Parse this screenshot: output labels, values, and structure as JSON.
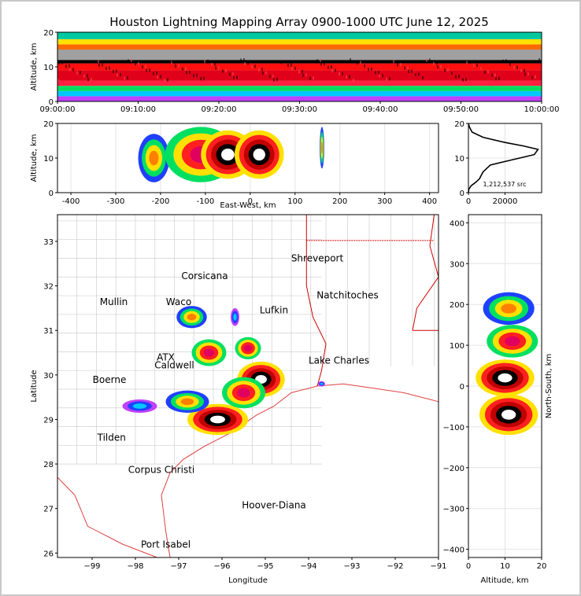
{
  "chart_data": [
    {
      "type": "heatmap",
      "panel": "time-altitude",
      "title": "Houston Lightning Mapping Array 0900-1000 UTC June 12, 2025",
      "ylabel": "Altitude, km",
      "xlabel": "",
      "x_ticks": [
        "09:00:00",
        "09:10:00",
        "09:20:00",
        "09:30:00",
        "09:40:00",
        "09:50:00",
        "10:00:00"
      ],
      "xlim": [
        "09:00:00",
        "10:00:00"
      ],
      "ylim": [
        0,
        20
      ],
      "y_ticks": [
        0,
        10,
        20
      ],
      "bands": [
        {
          "alt": [
            0,
            1.5
          ],
          "color": "#c040ff"
        },
        {
          "alt": [
            1.5,
            3
          ],
          "color": "#00c8ff"
        },
        {
          "alt": [
            3,
            4.5
          ],
          "color": "#00e060"
        },
        {
          "alt": [
            4.5,
            6
          ],
          "color": "#ff2040"
        },
        {
          "alt": [
            6,
            9
          ],
          "color": "#e0001a"
        },
        {
          "alt": [
            9,
            11
          ],
          "color": "#ff1010"
        },
        {
          "alt": [
            11,
            12
          ],
          "color": "#000000"
        },
        {
          "alt": [
            12,
            15
          ],
          "color": "#a0a0a0"
        },
        {
          "alt": [
            15,
            16.5
          ],
          "color": "#ff6a00"
        },
        {
          "alt": [
            16.5,
            18
          ],
          "color": "#ffe000"
        },
        {
          "alt": [
            18,
            20
          ],
          "color": "#00c8a0"
        }
      ]
    },
    {
      "type": "heatmap",
      "panel": "east-west-altitude",
      "xlabel": "East-West, km",
      "ylabel": "Altitude, km",
      "xlim": [
        -430,
        420
      ],
      "ylim": [
        0,
        20
      ],
      "x_ticks": [
        -400,
        -300,
        -200,
        -100,
        0,
        100,
        200,
        300,
        400
      ],
      "y_ticks": [
        0,
        10,
        20
      ],
      "cells": [
        {
          "x": -215,
          "z": 10,
          "rx": 35,
          "rz": 7,
          "level": 1
        },
        {
          "x": -110,
          "z": 11,
          "rx": 80,
          "rz": 8,
          "level": 2
        },
        {
          "x": -50,
          "z": 11,
          "rx": 60,
          "rz": 7,
          "level": 3
        },
        {
          "x": 20,
          "z": 11,
          "rx": 55,
          "rz": 7,
          "level": 3
        },
        {
          "x": 160,
          "z": 13,
          "rx": 5,
          "rz": 6,
          "level": 1
        }
      ]
    },
    {
      "type": "line",
      "panel": "altitude-histogram",
      "xlim": [
        0,
        40000
      ],
      "ylim": [
        0,
        20
      ],
      "x_ticks": [
        0,
        20000
      ],
      "y_ticks": [
        0,
        10,
        20
      ],
      "annotation": "1,212,537 src",
      "x": [
        0,
        200,
        1500,
        4000,
        6000,
        8000,
        12000,
        20000,
        28000,
        36000,
        38000,
        30000,
        20000,
        8000,
        2000,
        500,
        0
      ],
      "y": [
        0,
        1,
        2,
        3,
        4,
        6,
        8,
        9,
        10,
        11,
        12.5,
        13.5,
        14.5,
        16,
        17.5,
        19,
        20
      ]
    },
    {
      "type": "heatmap",
      "panel": "plan-view",
      "xlabel": "Longitude",
      "ylabel": "Latitude",
      "xlim": [
        -99.8,
        -91
      ],
      "ylim": [
        25.9,
        33.6
      ],
      "x_ticks": [
        -99,
        -98,
        -97,
        -96,
        -95,
        -94,
        -93,
        -92,
        -91
      ],
      "y_ticks": [
        26,
        27,
        28,
        29,
        30,
        31,
        32,
        33
      ],
      "cells": [
        {
          "lon": -96.1,
          "lat": 29.0,
          "rlon": 0.7,
          "rlat": 0.35,
          "level": 3
        },
        {
          "lon": -95.1,
          "lat": 29.9,
          "rlon": 0.55,
          "rlat": 0.4,
          "level": 3
        },
        {
          "lon": -95.5,
          "lat": 29.6,
          "rlon": 0.5,
          "rlat": 0.35,
          "level": 2
        },
        {
          "lon": -96.8,
          "lat": 29.4,
          "rlon": 0.5,
          "rlat": 0.25,
          "level": 1
        },
        {
          "lon": -96.3,
          "lat": 30.5,
          "rlon": 0.4,
          "rlat": 0.3,
          "level": 2
        },
        {
          "lon": -95.4,
          "lat": 30.6,
          "rlon": 0.3,
          "rlat": 0.25,
          "level": 2
        },
        {
          "lon": -96.7,
          "lat": 31.3,
          "rlon": 0.35,
          "rlat": 0.25,
          "level": 1
        },
        {
          "lon": -97.9,
          "lat": 29.3,
          "rlon": 0.4,
          "rlat": 0.15,
          "level": 0
        },
        {
          "lon": -95.7,
          "lat": 31.3,
          "rlon": 0.1,
          "rlat": 0.2,
          "level": 0
        },
        {
          "lon": -93.7,
          "lat": 29.8,
          "rlon": 0.08,
          "rlat": 0.06,
          "level": 0
        }
      ],
      "labels": [
        {
          "text": "Shreveport",
          "lon": -93.8,
          "lat": 32.55,
          "color": "#000000"
        },
        {
          "text": "Corsicana",
          "lon": -96.4,
          "lat": 32.15,
          "color": "#000000"
        },
        {
          "text": "Natchitoches",
          "lon": -93.1,
          "lat": 31.72,
          "color": "#000000"
        },
        {
          "text": "Mullin",
          "lon": -98.5,
          "lat": 31.57,
          "color": "#ff8c50"
        },
        {
          "text": "Waco",
          "lon": -97.0,
          "lat": 31.57,
          "color": "#000000"
        },
        {
          "text": "Lufkin",
          "lon": -94.8,
          "lat": 31.38,
          "color": "#000000"
        },
        {
          "text": "ATX",
          "lon": -97.3,
          "lat": 30.32,
          "color": "#ff8c50"
        },
        {
          "text": "Caldwell",
          "lon": -97.1,
          "lat": 30.15,
          "color": "#000000"
        },
        {
          "text": "Lake Charles",
          "lon": -93.3,
          "lat": 30.25,
          "color": "#000000"
        },
        {
          "text": "Boerne",
          "lon": -98.6,
          "lat": 29.82,
          "color": "#000000"
        },
        {
          "text": "Tilden",
          "lon": -98.55,
          "lat": 28.52,
          "color": "#000000"
        },
        {
          "text": "Corpus Christi",
          "lon": -97.4,
          "lat": 27.8,
          "color": "#000000"
        },
        {
          "text": "Hoover-Diana",
          "lon": -94.8,
          "lat": 27.0,
          "color": "#2020ff"
        },
        {
          "text": "Port Isabel",
          "lon": -97.3,
          "lat": 26.12,
          "color": "#000000"
        }
      ]
    },
    {
      "type": "heatmap",
      "panel": "altitude-north-south",
      "xlabel": "Altitude, km",
      "ylabel": "North-South, km",
      "xlim": [
        0,
        20
      ],
      "ylim": [
        -420,
        420
      ],
      "x_ticks": [
        0,
        10,
        20
      ],
      "y_ticks": [
        -400,
        -300,
        -200,
        -100,
        0,
        100,
        200,
        300,
        400
      ],
      "cells": [
        {
          "z": 11,
          "y": 190,
          "rz": 7,
          "ry": 40,
          "level": 1
        },
        {
          "z": 12,
          "y": 110,
          "rz": 7,
          "ry": 40,
          "level": 2
        },
        {
          "z": 10,
          "y": 20,
          "rz": 8,
          "ry": 45,
          "level": 3
        },
        {
          "z": 11,
          "y": -70,
          "rz": 8,
          "ry": 50,
          "level": 3
        }
      ]
    }
  ],
  "palette": {
    "levels": [
      [
        "#c040ff",
        "#2040ff",
        "#00c8ff"
      ],
      [
        "#2040ff",
        "#00e060",
        "#ffe000",
        "#ff8000"
      ],
      [
        "#00e060",
        "#ffe000",
        "#ff2020",
        "#e00060"
      ],
      [
        "#ffe000",
        "#ff2020",
        "#c00000",
        "#000000",
        "#ffffff"
      ]
    ]
  }
}
